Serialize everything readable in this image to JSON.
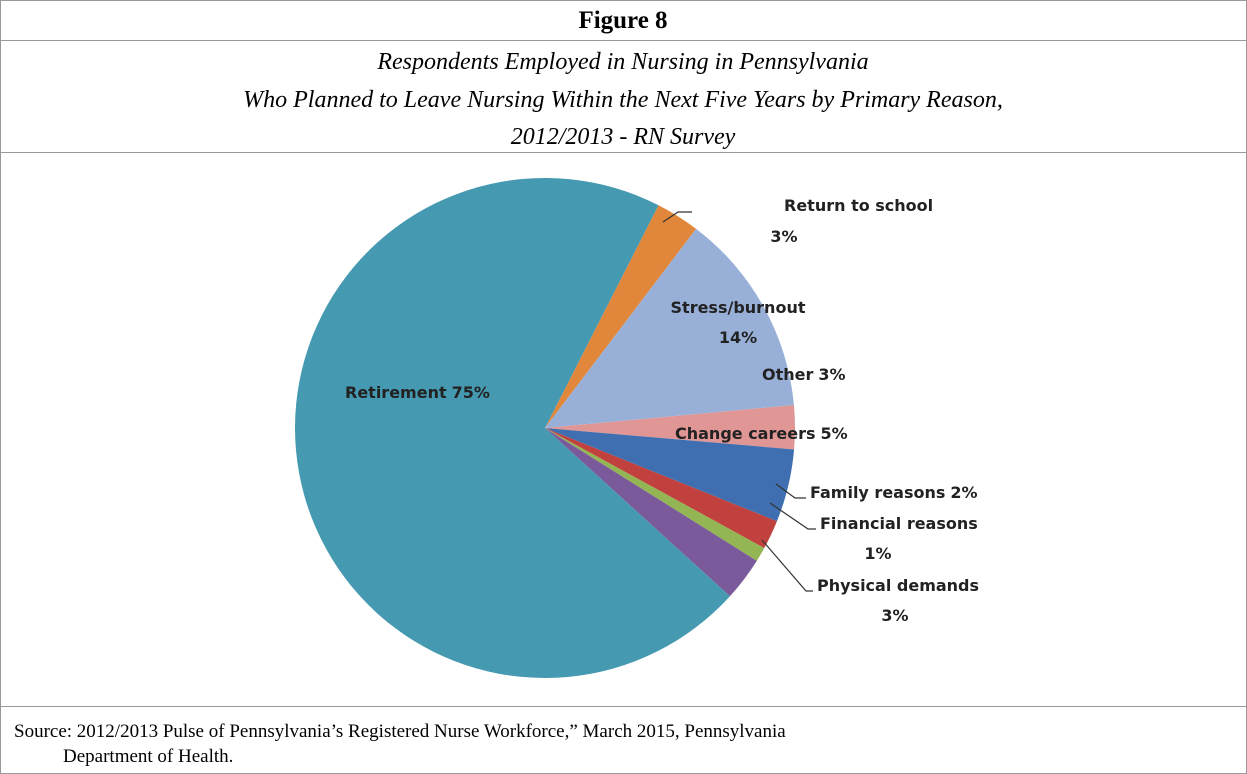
{
  "figure_label": "Figure 8",
  "chart_data": {
    "type": "pie",
    "title": [
      "Respondents Employed in Nursing in Pennsylvania",
      "Who Planned to Leave Nursing Within the Next Five Years by Primary Reason,",
      "2012/2013 - RN Survey"
    ],
    "categories": [
      "Return to school",
      "Stress/burnout",
      "Other",
      "Change careers",
      "Family reasons",
      "Financial reasons",
      "Physical demands",
      "Retirement"
    ],
    "values": [
      3,
      14,
      3,
      5,
      2,
      1,
      3,
      75
    ],
    "value_labels": [
      "3%",
      "14%",
      "3%",
      "5%",
      "2%",
      "1%",
      "3%",
      "75%"
    ],
    "colors": [
      "#e0873b",
      "#98b0d8",
      "#df9694",
      "#3f6fb0",
      "#c0413d",
      "#93b553",
      "#7a5a9a",
      "#4599b0"
    ]
  },
  "source": [
    "Source:  2012/2013 Pulse of Pennsylvania’s Registered Nurse Workforce,” March 2015, Pennsylvania",
    "Department of Health."
  ]
}
